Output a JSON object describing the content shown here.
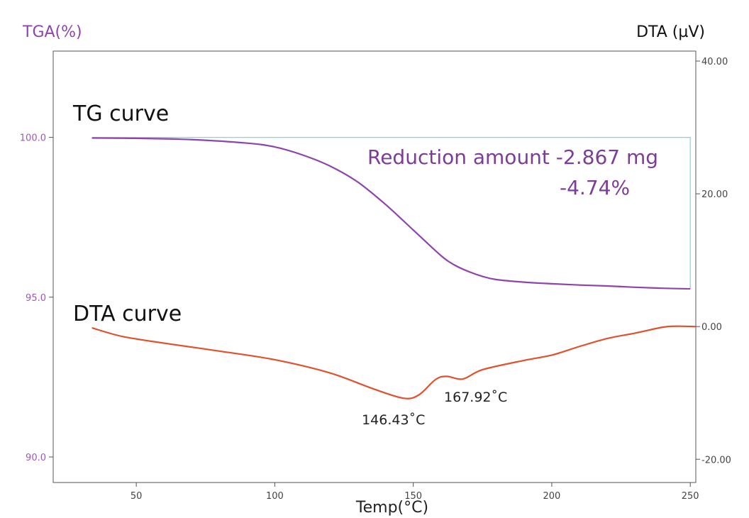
{
  "chart_data": {
    "type": "line",
    "y_left_label": "TGA(%)",
    "y_right_label": "DTA (µV)",
    "x_label": "Temp(°C)",
    "x_ticks": [
      "50",
      "100",
      "150",
      "200",
      "250"
    ],
    "y_left_ticks": [
      "100.0",
      "95.0",
      "90.0"
    ],
    "y_right_ticks": [
      "40.00",
      "20.00",
      "0.00",
      "-20.00"
    ],
    "xlim": [
      20,
      252
    ],
    "y_left_lim": [
      89.2,
      102.7
    ],
    "y_right_lim": [
      -23.5,
      41.5
    ],
    "series": [
      {
        "name": "TG curve",
        "axis": "left",
        "color": "#8e44ad",
        "x": [
          34,
          50,
          70,
          90,
          100,
          110,
          120,
          130,
          140,
          150,
          160,
          165,
          170,
          175,
          180,
          190,
          200,
          210,
          220,
          230,
          240,
          250
        ],
        "y": [
          99.98,
          99.97,
          99.93,
          99.82,
          99.7,
          99.45,
          99.1,
          98.6,
          97.9,
          97.1,
          96.3,
          96.0,
          95.8,
          95.65,
          95.55,
          95.47,
          95.42,
          95.38,
          95.35,
          95.31,
          95.28,
          95.26
        ]
      },
      {
        "name": "DTA curve",
        "axis": "right",
        "color": "#e0522d",
        "x": [
          34,
          45,
          60,
          80,
          100,
          120,
          135,
          146.43,
          152,
          158,
          162,
          167.92,
          175,
          190,
          200,
          210,
          220,
          230,
          240,
          245,
          252
        ],
        "y": [
          -0.2,
          -1.5,
          -2.5,
          -3.7,
          -5.0,
          -7.0,
          -9.3,
          -10.8,
          -10.3,
          -8.0,
          -7.5,
          -7.9,
          -6.5,
          -5.1,
          -4.3,
          -3.0,
          -1.8,
          -1.0,
          -0.1,
          0.05,
          0.0
        ]
      }
    ],
    "annotations": {
      "tg_title": "TG curve",
      "dta_title": "DTA curve",
      "reduction_line1": "Reduction amount  -2.867 mg",
      "reduction_line2": "-4.74%",
      "peak1_label": "146.43˚C",
      "peak1_x": 146.43,
      "peak2_label": "167.92˚C",
      "peak2_x": 167.92
    },
    "reduction_bracket": {
      "x_start": 34,
      "x_end": 250,
      "y_top": 100.0,
      "y_bottom": 95.26,
      "color": "#7fd6e0"
    },
    "grid": false
  }
}
